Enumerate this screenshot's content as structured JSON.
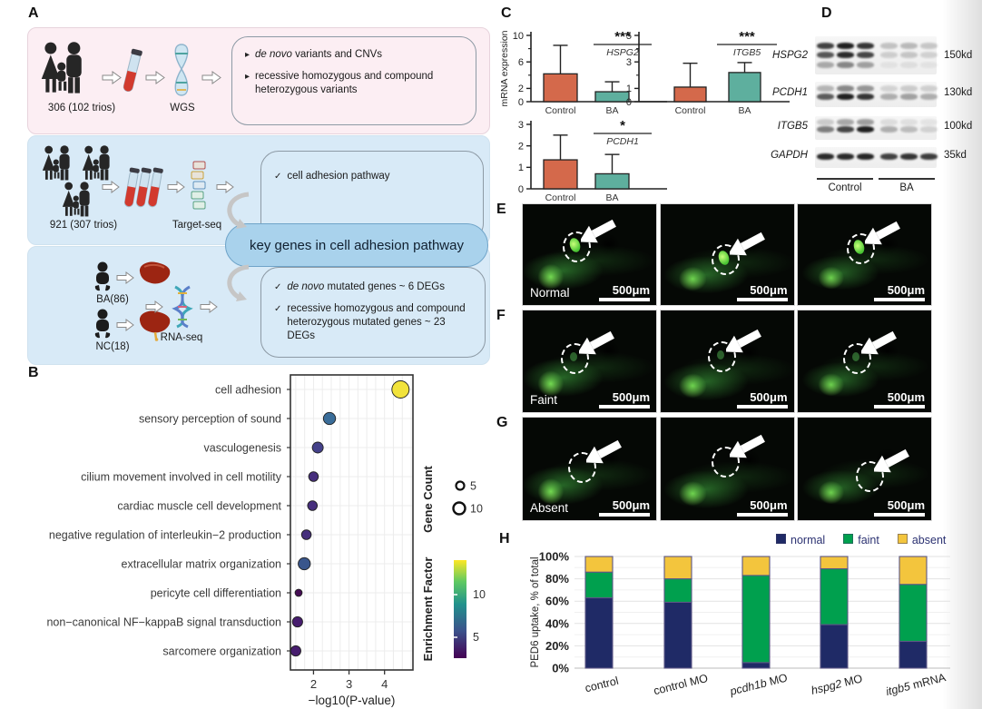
{
  "panels": {
    "A": {
      "label": "A",
      "wgs": {
        "cohort": "306 (102 trios)",
        "method": "WGS",
        "bullet1_italic": "de novo",
        "bullet1_rest": " variants and CNVs",
        "bullet2": "recessive homozygous and compound heterozygous variants"
      },
      "target": {
        "cohort": "921 (307 trios)",
        "method": "Target-seq",
        "check1": "cell adhesion pathway"
      },
      "key_genes": "key genes in cell adhesion pathway",
      "rna": {
        "group1": "BA(86)",
        "group2": "NC(18)",
        "method": "RNA-seq",
        "check1_italic": "de novo",
        "check1_rest": " mutated genes ~ 6 DEGs",
        "check2": "recessive homozygous and compound heterozygous mutated genes ~ 23 DEGs"
      }
    },
    "B": {
      "label": "B"
    },
    "C": {
      "label": "C"
    },
    "D": {
      "label": "D",
      "rows": [
        {
          "gene": "HSPG2",
          "kd": "150kd"
        },
        {
          "gene": "PCDH1",
          "kd": "130kd"
        },
        {
          "gene": "ITGB5",
          "kd": "100kd"
        },
        {
          "gene": "GAPDH",
          "kd": "35kd"
        }
      ],
      "groups": [
        "Control",
        "BA"
      ]
    },
    "E": {
      "label": "E",
      "name": "Normal",
      "scale": "500μm"
    },
    "F": {
      "label": "F",
      "name": "Faint",
      "scale": "500μm"
    },
    "G": {
      "label": "G",
      "name": "Absent",
      "scale": "500μm"
    },
    "H": {
      "label": "H"
    }
  },
  "chart_data": [
    {
      "id": "B",
      "type": "scatter",
      "xlabel": "−log10(P-value)",
      "xlim": [
        1.35,
        4.8
      ],
      "xticks": [
        2,
        3,
        4
      ],
      "categories": [
        "cell adhesion",
        "sensory perception of sound",
        "vasculogenesis",
        "cilium movement involved in cell motility",
        "cardiac muscle cell development",
        "negative regulation of interleukin−2 production",
        "extracellular matrix organization",
        "pericyte cell differentiation",
        "non−canonical NF−kappaB signal transduction",
        "sarcomere organization"
      ],
      "points": [
        {
          "x": 4.45,
          "gene_count": 10,
          "enrichment": 13,
          "color": "#f2e33c"
        },
        {
          "x": 2.45,
          "gene_count": 6,
          "enrichment": 6,
          "color": "#3a6d99"
        },
        {
          "x": 2.12,
          "gene_count": 5,
          "enrichment": 4.5,
          "color": "#44418a"
        },
        {
          "x": 2.0,
          "gene_count": 4,
          "enrichment": 4,
          "color": "#472f7d"
        },
        {
          "x": 1.97,
          "gene_count": 4,
          "enrichment": 4,
          "color": "#472f7d"
        },
        {
          "x": 1.8,
          "gene_count": 4,
          "enrichment": 4,
          "color": "#46307c"
        },
        {
          "x": 1.74,
          "gene_count": 6,
          "enrichment": 5.5,
          "color": "#39568c"
        },
        {
          "x": 1.58,
          "gene_count": 2,
          "enrichment": 3,
          "color": "#450d54"
        },
        {
          "x": 1.55,
          "gene_count": 4.5,
          "enrichment": 3.5,
          "color": "#471d6e"
        },
        {
          "x": 1.5,
          "gene_count": 4.5,
          "enrichment": 3.5,
          "color": "#471d6e"
        }
      ],
      "legend": {
        "gene_count_title": "Gene Count",
        "gene_count_items": [
          5,
          10
        ],
        "enrichment_title": "Enrichment Factor",
        "enrichment_ticks": [
          10,
          5
        ]
      },
      "grid": true
    },
    {
      "id": "C_HSPG2",
      "type": "bar",
      "gene": "HSPG2",
      "significance": "***",
      "ylabel": "mRNA expression",
      "ylim": [
        0,
        10
      ],
      "yticks_labeled": [
        0,
        2,
        6,
        10
      ],
      "yticks_minor": [
        4,
        8
      ],
      "categories": [
        "Control",
        "BA"
      ],
      "values": [
        4.2,
        1.5
      ],
      "errors": [
        4.3,
        1.5
      ],
      "colors": [
        "#d4694b",
        "#5eaf9e"
      ]
    },
    {
      "id": "C_ITGB5",
      "type": "bar",
      "gene": "ITGB5",
      "significance": "***",
      "ylabel": "",
      "ylim": [
        0,
        5
      ],
      "yticks_labeled": [
        0,
        1,
        3,
        5
      ],
      "yticks_minor": [
        2,
        4
      ],
      "categories": [
        "Control",
        "BA"
      ],
      "values": [
        1.1,
        2.2
      ],
      "errors": [
        1.8,
        0.75
      ],
      "colors": [
        "#d4694b",
        "#5eaf9e"
      ]
    },
    {
      "id": "C_PCDH1",
      "type": "bar",
      "gene": "PCDH1",
      "significance": "*",
      "ylabel": "",
      "ylim": [
        0,
        3
      ],
      "yticks_labeled": [
        0,
        1,
        2,
        3
      ],
      "yticks_minor": [],
      "categories": [
        "Control",
        "BA"
      ],
      "values": [
        1.35,
        0.7
      ],
      "errors": [
        1.15,
        0.9
      ],
      "colors": [
        "#d4694b",
        "#5eaf9e"
      ]
    },
    {
      "id": "H",
      "type": "stacked_bar",
      "ylabel": "PED6 uptake, % of total",
      "yticks": [
        "0%",
        "20%",
        "40%",
        "60%",
        "80%",
        "100%"
      ],
      "categories": [
        "control",
        "control MO",
        "pcdh1b MO",
        "hspg2 MO",
        "itgb5 mRNA"
      ],
      "categories_rich": [
        {
          "italic": "",
          "rest": "control"
        },
        {
          "italic": "",
          "rest": "control MO"
        },
        {
          "italic": "pcdh1b",
          "rest": " MO"
        },
        {
          "italic": "hspg2",
          "rest": " MO"
        },
        {
          "italic": "itgb5",
          "rest": " mRNA"
        }
      ],
      "series": [
        {
          "name": "normal",
          "color": "#1f2a66",
          "values": [
            63,
            59,
            5,
            39,
            24
          ]
        },
        {
          "name": "faint",
          "color": "#00a04e",
          "values": [
            23,
            21,
            78,
            50,
            51
          ]
        },
        {
          "name": "absent",
          "color": "#f3c53d",
          "values": [
            14,
            20,
            17,
            11,
            25
          ]
        }
      ],
      "legend_position": "top-right",
      "grid": true
    }
  ]
}
